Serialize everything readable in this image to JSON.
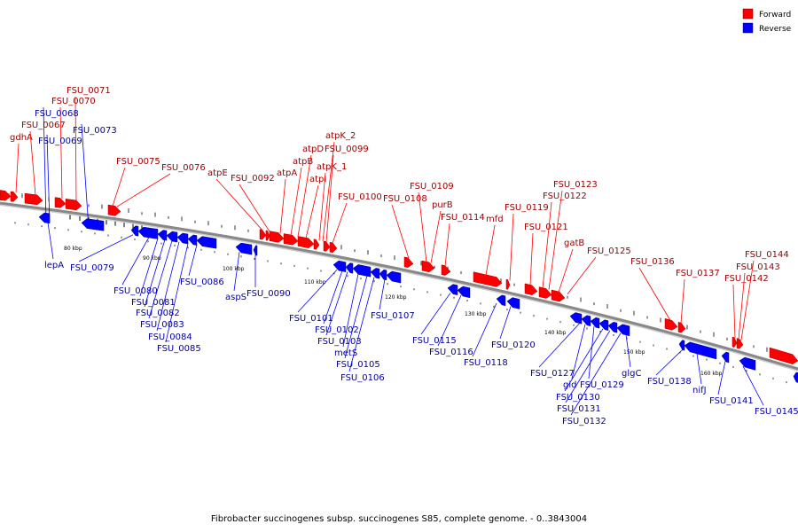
{
  "caption": "Fibrobacter succinogenes subsp. succinogenes S85, complete genome. - 0..3843004",
  "legend": [
    {
      "label": "Forward",
      "color": "#ff0000"
    },
    {
      "label": "Reverse",
      "color": "#0000ff"
    }
  ],
  "colors": {
    "forward": "#ff0000",
    "reverse": "#0000ff",
    "backbone": "#888888"
  },
  "ticks": [
    {
      "label": "80 kbp"
    },
    {
      "label": "90 kbp"
    },
    {
      "label": "100 kbp"
    },
    {
      "label": "110 kbp"
    },
    {
      "label": "120 kbp"
    },
    {
      "label": "130 kbp"
    },
    {
      "label": "140 kbp"
    },
    {
      "label": "150 kbp"
    },
    {
      "label": "160 kbp"
    }
  ],
  "forward_labels": [
    "gdhA",
    "FSU_0067",
    "FSU_0070",
    "FSU_0071",
    "FSU_0075",
    "FSU_0076",
    "atpE",
    "FSU_0092",
    "atpA",
    "atpB",
    "atpD",
    "atpI",
    "atpK_1",
    "atpK_2",
    "FSU_0099",
    "FSU_0100",
    "FSU_0108",
    "FSU_0109",
    "purB",
    "FSU_0114",
    "mfd",
    "FSU_0119",
    "FSU_0121",
    "FSU_0122",
    "FSU_0123",
    "gatB",
    "FSU_0125",
    "FSU_0136",
    "FSU_0137",
    "FSU_0142",
    "FSU_0143",
    "FSU_0144"
  ],
  "reverse_labels": [
    "FSU_0068",
    "FSU_0069",
    "FSU_0073",
    "lepA",
    "FSU_0079",
    "FSU_0080",
    "FSU_0081",
    "FSU_0082",
    "FSU_0083",
    "FSU_0084",
    "FSU_0085",
    "FSU_0086",
    "aspS",
    "FSU_0090",
    "FSU_0101",
    "FSU_0102",
    "FSU_0103",
    "metS",
    "FSU_0105",
    "FSU_0106",
    "FSU_0107",
    "FSU_0115",
    "FSU_0116",
    "FSU_0118",
    "FSU_0120",
    "FSU_0127",
    "gid",
    "FSU_0129",
    "FSU_0130",
    "FSU_0131",
    "FSU_0132",
    "glgC",
    "FSU_0138",
    "nifJ",
    "FSU_0141",
    "FSU_0145"
  ]
}
